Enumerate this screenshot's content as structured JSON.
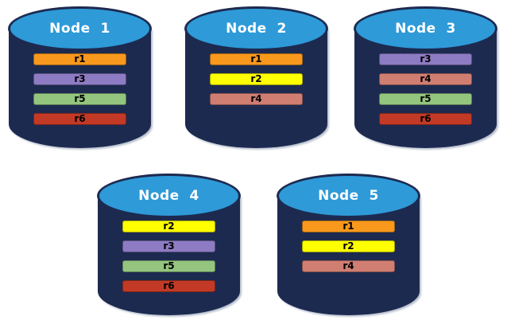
{
  "diagram": {
    "background": "#ffffff",
    "colors": {
      "cylinder_body": "#1D2A50",
      "cylinder_top": "#2E9AD8",
      "cylinder_outline": "#1D2A50",
      "title_text": "#FFFFFF",
      "bar_text": "#000000"
    },
    "replica_colors": {
      "r1": "#F8981D",
      "r2": "#FFFF00",
      "r3": "#8D7CC3",
      "r4": "#D07E72",
      "r5": "#93C57E",
      "r6": "#C23A26"
    }
  },
  "nodes": [
    {
      "name": "Node  1",
      "replicas": [
        {
          "label": "r1",
          "color": "#F8981D"
        },
        {
          "label": "r3",
          "color": "#8D7CC3"
        },
        {
          "label": "r5",
          "color": "#93C57E"
        },
        {
          "label": "r6",
          "color": "#C23A26"
        }
      ]
    },
    {
      "name": "Node  2",
      "replicas": [
        {
          "label": "r1",
          "color": "#F8981D"
        },
        {
          "label": "r2",
          "color": "#FFFF00"
        },
        {
          "label": "r4",
          "color": "#D07E72"
        }
      ]
    },
    {
      "name": "Node  3",
      "replicas": [
        {
          "label": "r3",
          "color": "#8D7CC3"
        },
        {
          "label": "r4",
          "color": "#D07E72"
        },
        {
          "label": "r5",
          "color": "#93C57E"
        },
        {
          "label": "r6",
          "color": "#C23A26"
        }
      ]
    },
    {
      "name": "Node  4",
      "replicas": [
        {
          "label": "r2",
          "color": "#FFFF00"
        },
        {
          "label": "r3",
          "color": "#8D7CC3"
        },
        {
          "label": "r5",
          "color": "#93C57E"
        },
        {
          "label": "r6",
          "color": "#C23A26"
        }
      ]
    },
    {
      "name": "Node  5",
      "replicas": [
        {
          "label": "r1",
          "color": "#F8981D"
        },
        {
          "label": "r2",
          "color": "#FFFF00"
        },
        {
          "label": "r4",
          "color": "#D07E72"
        }
      ]
    }
  ]
}
